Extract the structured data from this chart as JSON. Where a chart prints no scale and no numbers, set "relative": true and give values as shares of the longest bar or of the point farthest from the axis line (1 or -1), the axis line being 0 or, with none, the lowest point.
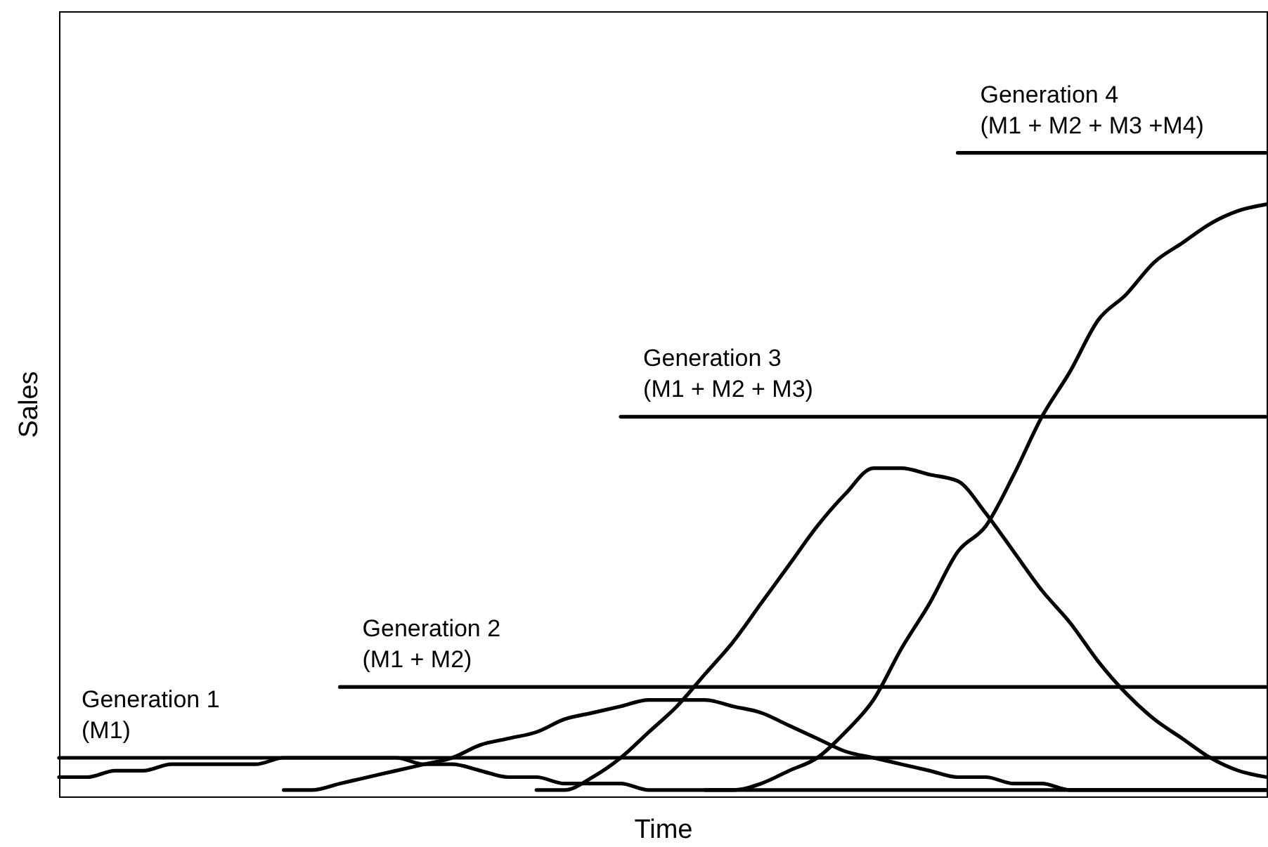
{
  "chart_data": {
    "type": "line",
    "relative": true,
    "xlabel": "Time",
    "ylabel": "Sales",
    "categories": [
      null,
      null,
      null,
      null,
      null,
      null,
      null,
      null,
      null,
      null,
      null,
      null,
      null,
      null,
      null,
      null,
      null,
      null,
      null,
      null,
      null,
      null,
      null,
      null,
      null,
      null,
      null,
      null,
      null,
      null,
      null,
      null,
      null,
      null,
      null,
      null,
      null,
      null,
      null,
      null,
      null,
      null,
      null,
      null
    ],
    "series": [
      {
        "color": "#000000",
        "values": [
          0.06,
          0.06,
          0.06,
          0.06,
          0.06,
          0.06,
          0.06,
          0.06,
          0.06,
          0.06,
          0.06,
          0.06,
          0.06,
          0.06,
          0.06,
          0.06,
          0.06,
          0.06,
          0.06,
          0.06,
          0.06,
          0.06,
          0.06,
          0.06,
          0.06,
          0.06,
          0.06,
          0.06,
          0.06,
          0.06,
          0.06,
          0.06,
          0.06,
          0.06,
          0.06,
          0.06,
          0.06,
          0.06,
          0.06,
          0.06,
          0.06,
          0.06,
          0.06,
          0.06
        ]
      },
      {
        "color": "#000000",
        "values": [
          null,
          null,
          null,
          null,
          null,
          null,
          null,
          null,
          null,
          null,
          0.17,
          0.17,
          0.17,
          0.17,
          0.17,
          0.17,
          0.17,
          0.17,
          0.17,
          0.17,
          0.17,
          0.17,
          0.17,
          0.17,
          0.17,
          0.17,
          0.17,
          0.17,
          0.17,
          0.17,
          0.17,
          0.17,
          0.17,
          0.17,
          0.17,
          0.17,
          0.17,
          0.17,
          0.17,
          0.17,
          0.17,
          0.17,
          0.17,
          0.17
        ]
      },
      {
        "color": "#000000",
        "values": [
          null,
          null,
          null,
          null,
          null,
          null,
          null,
          null,
          null,
          null,
          null,
          null,
          null,
          null,
          null,
          null,
          null,
          null,
          null,
          null,
          0.59,
          0.59,
          0.59,
          0.59,
          0.59,
          0.59,
          0.59,
          0.59,
          0.59,
          0.59,
          0.59,
          0.59,
          0.59,
          0.59,
          0.59,
          0.59,
          0.59,
          0.59,
          0.59,
          0.59,
          0.59,
          0.59,
          0.59,
          0.59
        ]
      },
      {
        "color": "#000000",
        "values": [
          null,
          null,
          null,
          null,
          null,
          null,
          null,
          null,
          null,
          null,
          null,
          null,
          null,
          null,
          null,
          null,
          null,
          null,
          null,
          null,
          null,
          null,
          null,
          null,
          null,
          null,
          null,
          null,
          null,
          null,
          null,
          null,
          1,
          1,
          1,
          1,
          1,
          1,
          1,
          1,
          1,
          1,
          1,
          1
        ]
      },
      {
        "color": "#000000",
        "values": [
          0.03,
          0.03,
          0.04,
          0.04,
          0.05,
          0.05,
          0.05,
          0.05,
          0.06,
          0.06,
          0.06,
          0.06,
          0.06,
          0.05,
          0.05,
          0.04,
          0.03,
          0.03,
          0.02,
          0.02,
          0.02,
          0.01,
          0.01,
          0.01,
          0.01,
          0.01,
          0.01,
          0.01,
          0.01,
          0.01,
          0.01,
          0.01,
          0.01,
          0.01,
          0.01,
          0.01,
          0.01,
          0.01,
          0.01,
          0.01,
          0.01,
          0.01,
          0.01,
          0.01
        ]
      },
      {
        "color": "#000000",
        "values": [
          null,
          null,
          null,
          null,
          null,
          null,
          null,
          null,
          0.01,
          0.01,
          0.02,
          0.03,
          0.04,
          0.05,
          0.06,
          0.08,
          0.09,
          0.1,
          0.12,
          0.13,
          0.14,
          0.15,
          0.15,
          0.15,
          0.14,
          0.13,
          0.11,
          0.09,
          0.07,
          0.06,
          0.05,
          0.04,
          0.03,
          0.03,
          0.02,
          0.02,
          0.01,
          0.01,
          0.01,
          0.01,
          0.01,
          0.01,
          0.01,
          0.01
        ]
      },
      {
        "color": "#000000",
        "values": [
          null,
          null,
          null,
          null,
          null,
          null,
          null,
          null,
          null,
          null,
          null,
          null,
          null,
          null,
          null,
          null,
          null,
          0.01,
          0.01,
          0.03,
          0.06,
          0.1,
          0.14,
          0.19,
          0.24,
          0.3,
          0.36,
          0.42,
          0.47,
          0.51,
          0.51,
          0.5,
          0.49,
          0.44,
          0.38,
          0.32,
          0.27,
          0.21,
          0.16,
          0.12,
          0.09,
          0.06,
          0.04,
          0.03
        ]
      },
      {
        "color": "#000000",
        "values": [
          null,
          null,
          null,
          null,
          null,
          null,
          null,
          null,
          null,
          null,
          null,
          null,
          null,
          null,
          null,
          null,
          null,
          null,
          null,
          null,
          null,
          null,
          null,
          0.01,
          0.01,
          0.02,
          0.04,
          0.06,
          0.1,
          0.15,
          0.23,
          0.3,
          0.38,
          0.42,
          0.5,
          0.59,
          0.66,
          0.74,
          0.78,
          0.83,
          0.86,
          0.89,
          0.91,
          0.92
        ]
      }
    ],
    "annotations": [
      "Generation 1\n(M1)",
      "Generation 2\n(M1 + M2)",
      "Generation 3\n(M1 + M2 + M3)",
      "Generation 4\n(M1 + M2 + M3 +M4)"
    ]
  }
}
